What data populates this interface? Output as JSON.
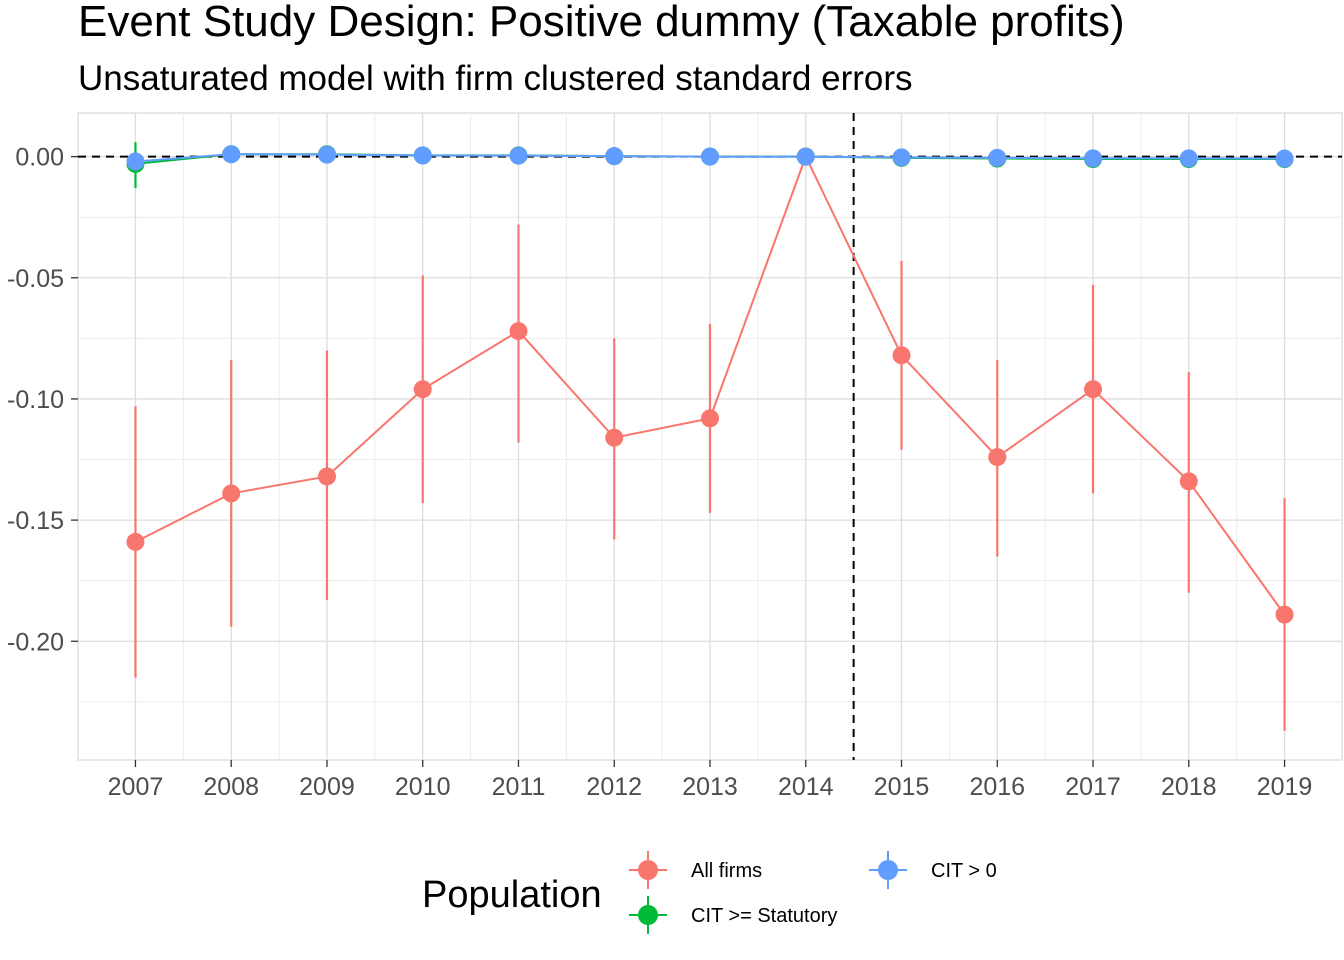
{
  "chart_data": {
    "type": "scatter",
    "title": "Event Study Design: Positive dummy (Taxable profits)",
    "subtitle": "Unsaturated model with firm clustered standard errors",
    "xlabel": "",
    "ylabel": "",
    "x": [
      2007,
      2008,
      2009,
      2010,
      2011,
      2012,
      2013,
      2014,
      2015,
      2016,
      2017,
      2018,
      2019
    ],
    "x_tick_labels": [
      "2007",
      "2008",
      "2009",
      "2010",
      "2011",
      "2012",
      "2013",
      "2014",
      "2015",
      "2016",
      "2017",
      "2018",
      "2019"
    ],
    "y_tick_values": [
      0.0,
      -0.05,
      -0.1,
      -0.15,
      -0.2
    ],
    "y_tick_labels": [
      "0.00",
      "-0.05",
      "-0.10",
      "-0.15",
      "-0.20"
    ],
    "xlim": [
      2006.4,
      2019.6
    ],
    "ylim": [
      -0.249,
      0.018
    ],
    "grid": true,
    "reference_lines": {
      "horizontal_y": 0,
      "vertical_x": 2014.5,
      "style": "dashed"
    },
    "legend": {
      "title": "Population",
      "position": "bottom"
    },
    "series": [
      {
        "name": "All firms",
        "color": "#F8766D",
        "values": [
          -0.159,
          -0.139,
          -0.132,
          -0.096,
          -0.072,
          -0.116,
          -0.108,
          0.0,
          -0.082,
          -0.124,
          -0.096,
          -0.134,
          -0.189
        ],
        "lower": [
          -0.215,
          -0.194,
          -0.183,
          -0.143,
          -0.118,
          -0.158,
          -0.147,
          0.0,
          -0.121,
          -0.165,
          -0.139,
          -0.18,
          -0.237
        ],
        "upper": [
          -0.103,
          -0.084,
          -0.08,
          -0.049,
          -0.028,
          -0.075,
          -0.069,
          0.0,
          -0.043,
          -0.084,
          -0.053,
          -0.089,
          -0.141
        ]
      },
      {
        "name": "CIT >= Statutory",
        "color": "#00BA38",
        "values": [
          -0.003,
          0.001,
          0.001,
          0.0005,
          0.0005,
          0.0002,
          0.0,
          0.0,
          -0.0005,
          -0.0008,
          -0.001,
          -0.001,
          -0.001
        ],
        "lower": [
          -0.013,
          0.0,
          0.0,
          0.0,
          0.0,
          0.0,
          -0.0005,
          0.0,
          -0.0012,
          -0.0015,
          -0.0018,
          -0.0018,
          -0.002
        ],
        "upper": [
          0.006,
          0.002,
          0.002,
          0.001,
          0.001,
          0.0008,
          0.0005,
          0.0,
          0.0002,
          0.0,
          0.0,
          0.0,
          0.0
        ]
      },
      {
        "name": "CIT > 0",
        "color": "#619CFF",
        "values": [
          -0.002,
          0.001,
          0.0008,
          0.0005,
          0.0004,
          0.0002,
          0.0,
          0.0,
          -0.0003,
          -0.0005,
          -0.0007,
          -0.0007,
          -0.0008
        ],
        "lower": [
          -0.004,
          0.0,
          0.0,
          0.0,
          0.0,
          0.0,
          -0.0005,
          0.0,
          -0.001,
          -0.001,
          -0.0012,
          -0.0012,
          -0.0013
        ],
        "upper": [
          0.0,
          0.002,
          0.0016,
          0.001,
          0.0008,
          0.0006,
          0.0005,
          0.0,
          0.0004,
          0.0,
          -0.0002,
          -0.0002,
          -0.0003
        ]
      }
    ]
  }
}
